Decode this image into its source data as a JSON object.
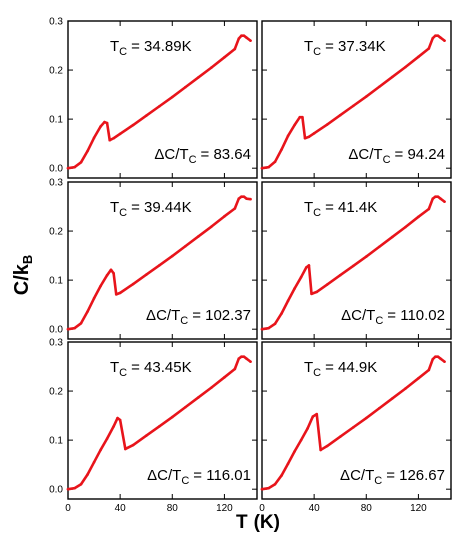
{
  "figure": {
    "xlabel_main": "T",
    "xlabel_unit": "(K)",
    "ylabel_main": "C/k",
    "ylabel_sub": "B"
  },
  "chart_data": [
    {
      "type": "line",
      "series_color": "#e8141b",
      "xlim": [
        0,
        145
      ],
      "ylim": [
        -0.02,
        0.3
      ],
      "xticks": [
        "0",
        "40",
        "80",
        "120"
      ],
      "yticks": [
        "0.0",
        "0.1",
        "0.2",
        "0.3"
      ],
      "tc_label": "T",
      "tc_sub": "C",
      "tc_value": "= 34.89K",
      "ratio_label": "ΔC/T",
      "ratio_sub": "C",
      "ratio_value": "= 83.64",
      "x": [
        0,
        5,
        10,
        15,
        20,
        25,
        28,
        30,
        32,
        35,
        40,
        50,
        60,
        70,
        80,
        90,
        100,
        110,
        120,
        128,
        131,
        133,
        135,
        137,
        140
      ],
      "y": [
        0.0,
        0.002,
        0.012,
        0.035,
        0.062,
        0.085,
        0.094,
        0.092,
        0.057,
        0.061,
        0.07,
        0.088,
        0.107,
        0.126,
        0.145,
        0.165,
        0.185,
        0.205,
        0.226,
        0.243,
        0.264,
        0.27,
        0.27,
        0.266,
        0.26
      ]
    },
    {
      "type": "line",
      "series_color": "#e8141b",
      "xlim": [
        0,
        145
      ],
      "ylim": [
        -0.02,
        0.3
      ],
      "xticks": [
        "0",
        "40",
        "80",
        "120"
      ],
      "yticks": [
        "0.0",
        "0.1",
        "0.2",
        "0.3"
      ],
      "tc_label": "T",
      "tc_sub": "C",
      "tc_value": "= 37.34K",
      "ratio_label": "ΔC/T",
      "ratio_sub": "C",
      "ratio_value": "= 94.24",
      "x": [
        0,
        5,
        10,
        15,
        20,
        25,
        29,
        31,
        33,
        36,
        40,
        50,
        60,
        70,
        80,
        90,
        100,
        110,
        120,
        128,
        131,
        133,
        135,
        137,
        140
      ],
      "y": [
        0.0,
        0.002,
        0.013,
        0.038,
        0.066,
        0.088,
        0.104,
        0.104,
        0.061,
        0.064,
        0.071,
        0.089,
        0.108,
        0.127,
        0.146,
        0.166,
        0.186,
        0.206,
        0.227,
        0.244,
        0.265,
        0.27,
        0.27,
        0.266,
        0.26
      ]
    },
    {
      "type": "line",
      "series_color": "#e8141b",
      "xlim": [
        0,
        145
      ],
      "ylim": [
        -0.02,
        0.3
      ],
      "xticks": [
        "0",
        "40",
        "80",
        "120"
      ],
      "yticks": [
        "0.0",
        "0.1",
        "0.2",
        "0.3"
      ],
      "tc_label": "T",
      "tc_sub": "C",
      "tc_value": "= 39.44K",
      "ratio_label": "ΔC/T",
      "ratio_sub": "C",
      "ratio_value": "= 102.37",
      "x": [
        0,
        5,
        10,
        15,
        20,
        25,
        30,
        33,
        35,
        37,
        40,
        50,
        60,
        70,
        80,
        90,
        100,
        110,
        120,
        128,
        131,
        133,
        135,
        137,
        140
      ],
      "y": [
        0.0,
        0.002,
        0.012,
        0.036,
        0.063,
        0.088,
        0.11,
        0.121,
        0.114,
        0.071,
        0.074,
        0.092,
        0.111,
        0.13,
        0.149,
        0.169,
        0.189,
        0.209,
        0.23,
        0.246,
        0.266,
        0.27,
        0.27,
        0.266,
        0.265
      ]
    },
    {
      "type": "line",
      "series_color": "#e8141b",
      "xlim": [
        0,
        145
      ],
      "ylim": [
        -0.02,
        0.3
      ],
      "xticks": [
        "0",
        "40",
        "80",
        "120"
      ],
      "yticks": [
        "0.0",
        "0.1",
        "0.2",
        "0.3"
      ],
      "tc_label": "T",
      "tc_sub": "C",
      "tc_value": "= 41.4K",
      "ratio_label": "ΔC/T",
      "ratio_sub": "C",
      "ratio_value": "= 110.02",
      "x": [
        0,
        5,
        10,
        15,
        20,
        25,
        30,
        34,
        36,
        38,
        42,
        50,
        60,
        70,
        80,
        90,
        100,
        110,
        120,
        128,
        131,
        133,
        135,
        137,
        140
      ],
      "y": [
        0.0,
        0.002,
        0.011,
        0.032,
        0.058,
        0.083,
        0.106,
        0.126,
        0.13,
        0.072,
        0.076,
        0.091,
        0.11,
        0.129,
        0.148,
        0.168,
        0.188,
        0.208,
        0.229,
        0.245,
        0.266,
        0.27,
        0.27,
        0.266,
        0.26
      ]
    },
    {
      "type": "line",
      "series_color": "#e8141b",
      "xlim": [
        0,
        145
      ],
      "ylim": [
        -0.02,
        0.3
      ],
      "xticks": [
        "0",
        "40",
        "80",
        "120"
      ],
      "yticks": [
        "0.0",
        "0.1",
        "0.2",
        "0.3"
      ],
      "tc_label": "T",
      "tc_sub": "C",
      "tc_value": "= 43.45K",
      "ratio_label": "ΔC/T",
      "ratio_sub": "C",
      "ratio_value": "= 116.01",
      "x": [
        0,
        5,
        10,
        15,
        20,
        25,
        30,
        35,
        38,
        40,
        44,
        50,
        60,
        70,
        80,
        90,
        100,
        110,
        120,
        128,
        131,
        133,
        135,
        137,
        140
      ],
      "y": [
        0.0,
        0.002,
        0.01,
        0.03,
        0.055,
        0.08,
        0.103,
        0.128,
        0.145,
        0.141,
        0.082,
        0.09,
        0.109,
        0.128,
        0.147,
        0.167,
        0.187,
        0.207,
        0.228,
        0.245,
        0.266,
        0.27,
        0.27,
        0.266,
        0.26
      ]
    },
    {
      "type": "line",
      "series_color": "#e8141b",
      "xlim": [
        0,
        145
      ],
      "ylim": [
        -0.02,
        0.3
      ],
      "xticks": [
        "0",
        "40",
        "80",
        "120"
      ],
      "yticks": [
        "0.0",
        "0.1",
        "0.2",
        "0.3"
      ],
      "tc_label": "T",
      "tc_sub": "C",
      "tc_value": "= 44.9K",
      "ratio_label": "ΔC/T",
      "ratio_sub": "C",
      "ratio_value": "= 126.67",
      "x": [
        0,
        5,
        10,
        15,
        20,
        25,
        30,
        35,
        39,
        42,
        45,
        50,
        60,
        70,
        80,
        90,
        100,
        110,
        120,
        128,
        131,
        133,
        135,
        137,
        140
      ],
      "y": [
        0.0,
        0.002,
        0.01,
        0.028,
        0.052,
        0.077,
        0.1,
        0.124,
        0.148,
        0.153,
        0.08,
        0.088,
        0.107,
        0.126,
        0.145,
        0.165,
        0.185,
        0.205,
        0.226,
        0.243,
        0.265,
        0.27,
        0.27,
        0.266,
        0.26
      ]
    }
  ]
}
